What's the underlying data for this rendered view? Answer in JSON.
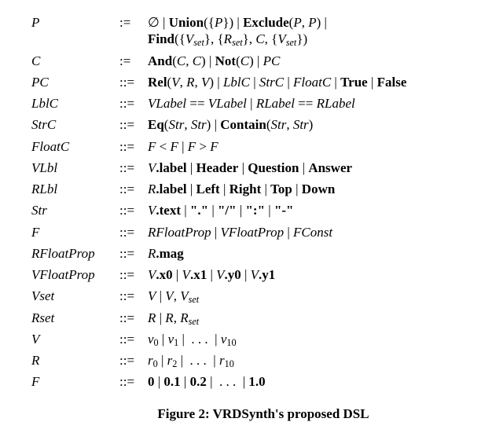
{
  "caption": "Figure 2: VRDSynth's proposed DSL",
  "rows": [
    {
      "lhs_html": "<span class='i'>P</span>",
      "op": ":=",
      "rhs_html": "∅ | <span class='b'>Union</span>({<span class='i'>P</span>}) | <span class='b'>Exclude</span>(<span class='i'>P</span>, <span class='i'>P</span>) |<br><span class='b'>Find</span>({<span class='i'>V</span><span class='sub'>set</span>}, {<span class='i'>R</span><span class='sub'>set</span>}, <span class='i'>C</span>, {<span class='i'>V</span><span class='sub'>set</span>})"
    },
    {
      "lhs_html": "<span class='i'>C</span>",
      "op": ":=",
      "rhs_html": "<span class='b'>And</span>(<span class='i'>C</span>, <span class='i'>C</span>) | <span class='b'>Not</span>(<span class='i'>C</span>) | <span class='i'>PC</span>"
    },
    {
      "lhs_html": "<span class='i'>PC</span>",
      "op": "::=",
      "rhs_html": "<span class='b'>Rel</span>(<span class='i'>V</span>, <span class='i'>R</span>, <span class='i'>V</span>) | <span class='i'>LblC</span> | <span class='i'>StrC</span> | <span class='i'>FloatC</span> | <span class='b'>True</span> | <span class='b'>False</span>"
    },
    {
      "lhs_html": "<span class='i'>LblC</span>",
      "op": "::=",
      "rhs_html": "<span class='i'>VLabel</span> == <span class='i'>VLabel</span> | <span class='i'>RLabel</span> == <span class='i'>RLabel</span>"
    },
    {
      "lhs_html": "<span class='i'>StrC</span>",
      "op": "::=",
      "rhs_html": "<span class='b'>Eq</span>(<span class='i'>Str</span>, <span class='i'>Str</span>) | <span class='b'>Contain</span>(<span class='i'>Str</span>, <span class='i'>Str</span>)"
    },
    {
      "lhs_html": "<span class='i'>FloatC</span>",
      "op": "::=",
      "rhs_html": "<span class='i'>F</span> &lt; <span class='i'>F</span> | <span class='i'>F</span> &gt; <span class='i'>F</span>"
    },
    {
      "lhs_html": "<span class='i'>VLbl</span>",
      "op": "::=",
      "rhs_html": "<span class='i'>V</span><span class='b'>.label</span> | <span class='b'>Header</span> | <span class='b'>Question</span> | <span class='b'>Answer</span>"
    },
    {
      "lhs_html": "<span class='i'>RLbl</span>",
      "op": "::=",
      "rhs_html": "<span class='i'>R</span><span class='b'>.label</span> | <span class='b'>Left</span> | <span class='b'>Right</span> | <span class='b'>Top</span> | <span class='b'>Down</span>"
    },
    {
      "lhs_html": "<span class='i'>Str</span>",
      "op": "::=",
      "rhs_html": "<span class='i'>V</span><span class='b'>.text</span> | <span class='b'>\".\"</span> | <span class='b'>\"/\"</span> | <span class='b'>\":\"</span> | <span class='b'>\"-\"</span>"
    },
    {
      "lhs_html": "<span class='i'>F</span>",
      "op": "::=",
      "rhs_html": "<span class='i'>RFloatProp</span> | <span class='i'>VFloatProp</span> | <span class='i'>FConst</span>"
    },
    {
      "lhs_html": "<span class='i'>RFloatProp</span>",
      "op": "::=",
      "rhs_html": "<span class='i'>R</span><span class='b'>.mag</span>"
    },
    {
      "lhs_html": "<span class='i'>VFloatProp</span>",
      "op": "::=",
      "rhs_html": "<span class='i'>V</span><span class='b'>.x0</span> | <span class='i'>V</span><span class='b'>.x1</span> | <span class='i'>V</span><span class='b'>.y0</span> | <span class='i'>V</span><span class='b'>.y1</span>"
    },
    {
      "lhs_html": "<span class='i'>V</span><span class='sub'>set</span>",
      "op": "::=",
      "rhs_html": "<span class='i'>V</span> | <span class='i'>V</span>, <span class='i'>V</span><span class='sub'>set</span>"
    },
    {
      "lhs_html": "<span class='i'>R</span><span class='sub'>set</span>",
      "op": "::=",
      "rhs_html": "<span class='i'>R</span> | <span class='i'>R</span>, <span class='i'>R</span><span class='sub'>set</span>"
    },
    {
      "lhs_html": "<span class='i'>V</span>",
      "op": "::=",
      "rhs_html": "<span class='i'>v</span><span class='subn'>0</span> | <span class='i'>v</span><span class='subn'>1</span> | &nbsp;. . .&nbsp; | <span class='i'>v</span><span class='subn'>10</span>"
    },
    {
      "lhs_html": "<span class='i'>R</span>",
      "op": "::=",
      "rhs_html": "<span class='i'>r</span><span class='subn'>0</span> | <span class='i'>r</span><span class='subn'>2</span> | &nbsp;. . .&nbsp; | <span class='i'>r</span><span class='subn'>10</span>"
    },
    {
      "lhs_html": "<span class='i'>F</span>",
      "op": "::=",
      "rhs_html": "<span class='b'>0</span> | <span class='b'>0.1</span> | <span class='b'>0.2</span> | &nbsp;. . .&nbsp; | <span class='b'>1.0</span>"
    }
  ]
}
